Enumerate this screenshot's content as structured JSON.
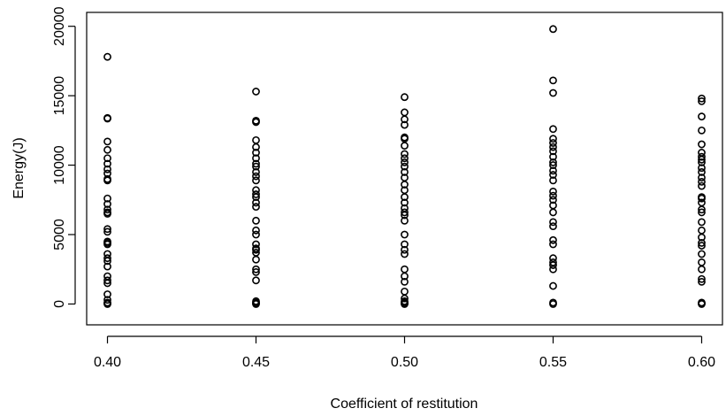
{
  "chart_data": {
    "type": "scatter",
    "title": "",
    "xlabel": "Coefficient of restitution",
    "ylabel": "Energy(J)",
    "xlim": [
      0.393,
      0.607
    ],
    "ylim": [
      -1500,
      21000
    ],
    "x_ticks": [
      0.4,
      0.45,
      0.5,
      0.55,
      0.6
    ],
    "x_tick_labels": [
      "0.40",
      "0.45",
      "0.50",
      "0.55",
      "0.60"
    ],
    "y_ticks": [
      0,
      5000,
      10000,
      15000,
      20000
    ],
    "y_tick_labels": [
      "0",
      "5000",
      "10000",
      "15000",
      "20000"
    ],
    "grid": false,
    "legend": "none",
    "marker": "open-circle",
    "marker_color": "#000000",
    "series": [
      {
        "x": 0.4,
        "values": [
          17800,
          13400,
          13350,
          11700,
          11100,
          10500,
          10100,
          9700,
          9400,
          9000,
          8900,
          7600,
          7200,
          6800,
          6600,
          6500,
          5400,
          5200,
          4500,
          4400,
          4300,
          3600,
          3300,
          3100,
          2700,
          2000,
          1700,
          1500,
          700,
          300,
          100,
          50,
          0
        ]
      },
      {
        "x": 0.45,
        "values": [
          15300,
          13200,
          13100,
          11800,
          11300,
          10900,
          10500,
          10100,
          9900,
          9500,
          9200,
          8900,
          8200,
          7900,
          7700,
          7300,
          7000,
          6000,
          5300,
          5000,
          4300,
          4000,
          3900,
          3700,
          3200,
          2500,
          2300,
          1700,
          200,
          100,
          50,
          0
        ]
      },
      {
        "x": 0.5,
        "values": [
          14900,
          13800,
          13300,
          12900,
          12000,
          11900,
          11400,
          10800,
          10500,
          10200,
          9900,
          9500,
          9100,
          8600,
          8200,
          7700,
          7300,
          6900,
          6600,
          6400,
          6000,
          5000,
          4300,
          3900,
          3600,
          2500,
          2000,
          1600,
          900,
          400,
          200,
          100,
          50,
          0
        ]
      },
      {
        "x": 0.55,
        "values": [
          19800,
          16100,
          15200,
          12600,
          11900,
          11600,
          11300,
          11000,
          10600,
          10200,
          10000,
          9600,
          9300,
          8900,
          8100,
          7800,
          7500,
          7100,
          6600,
          5900,
          5600,
          4600,
          4300,
          3300,
          3000,
          2800,
          2500,
          1300,
          100,
          0
        ]
      },
      {
        "x": 0.6,
        "values": [
          14800,
          14600,
          13500,
          12500,
          11500,
          10900,
          10600,
          10400,
          10200,
          9800,
          9500,
          9100,
          8800,
          8500,
          7700,
          7600,
          7300,
          6800,
          6600,
          5900,
          5300,
          4800,
          4400,
          4200,
          3600,
          3000,
          2500,
          1800,
          1600,
          100,
          50,
          0
        ]
      }
    ]
  }
}
